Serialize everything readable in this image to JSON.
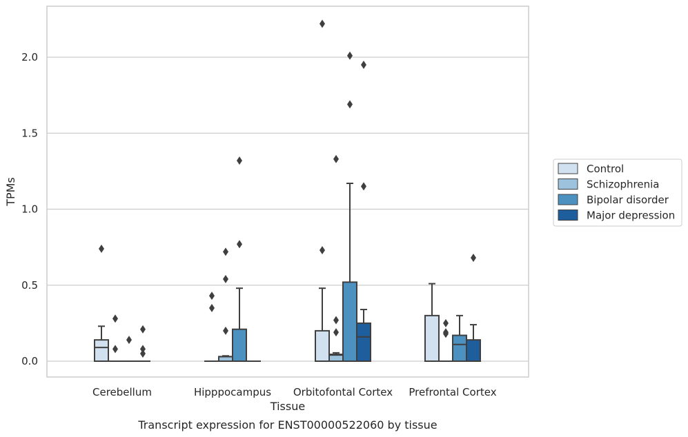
{
  "chart_data": {
    "type": "box",
    "title": "",
    "caption": "Transcript expression for ENST00000522060 by tissue",
    "xlabel": "Tissue",
    "ylabel": "TPMs",
    "ylim": [
      -0.11,
      2.34
    ],
    "yticks": [
      0.0,
      0.5,
      1.0,
      1.5,
      2.0
    ],
    "ytick_labels": [
      "0.0",
      "0.5",
      "1.0",
      "1.5",
      "2.0"
    ],
    "grid": "horizontal",
    "legend_position": "right",
    "categories": [
      "Cerebellum",
      "Hipppocampus",
      "Orbitofontal Cortex",
      "Prefrontal Cortex"
    ],
    "series": [
      {
        "name": "Control",
        "color": "#d1e1f0",
        "boxes": [
          {
            "q1": 0.0,
            "median": 0.09,
            "q3": 0.14,
            "whisker_low": 0.0,
            "whisker_high": 0.23,
            "outliers": [
              0.74
            ]
          },
          {
            "q1": 0.0,
            "median": 0.0,
            "q3": 0.0,
            "whisker_low": 0.0,
            "whisker_high": 0.0,
            "outliers": [
              0.43,
              0.35
            ]
          },
          {
            "q1": 0.0,
            "median": 0.0,
            "q3": 0.2,
            "whisker_low": 0.0,
            "whisker_high": 0.48,
            "outliers": [
              2.22,
              0.73
            ]
          },
          {
            "q1": 0.0,
            "median": 0.0,
            "q3": 0.3,
            "whisker_low": 0.0,
            "whisker_high": 0.51,
            "outliers": []
          }
        ]
      },
      {
        "name": "Schizophrenia",
        "color": "#9dc2dd",
        "boxes": [
          {
            "q1": 0.0,
            "median": 0.0,
            "q3": 0.0,
            "whisker_low": 0.0,
            "whisker_high": 0.0,
            "outliers": [
              0.28,
              0.08
            ]
          },
          {
            "q1": 0.0,
            "median": 0.03,
            "q3": 0.03,
            "whisker_low": 0.0,
            "whisker_high": 0.035,
            "outliers": [
              0.72,
              0.54,
              0.2
            ]
          },
          {
            "q1": 0.0,
            "median": 0.04,
            "q3": 0.045,
            "whisker_low": 0.0,
            "whisker_high": 0.055,
            "outliers": [
              1.33,
              0.27,
              0.19
            ]
          },
          {
            "q1": 0.0,
            "median": 0.0,
            "q3": 0.0,
            "whisker_low": 0.0,
            "whisker_high": 0.0,
            "outliers": [
              0.25,
              0.19,
              0.18
            ]
          }
        ]
      },
      {
        "name": "Bipolar disorder",
        "color": "#4c91c0",
        "boxes": [
          {
            "q1": 0.0,
            "median": 0.0,
            "q3": 0.0,
            "whisker_low": 0.0,
            "whisker_high": 0.0,
            "outliers": [
              0.14
            ]
          },
          {
            "q1": 0.0,
            "median": 0.0,
            "q3": 0.21,
            "whisker_low": 0.0,
            "whisker_high": 0.48,
            "outliers": [
              1.32,
              0.77
            ]
          },
          {
            "q1": 0.0,
            "median": 0.0,
            "q3": 0.52,
            "whisker_low": 0.0,
            "whisker_high": 1.17,
            "outliers": [
              2.01,
              1.69
            ]
          },
          {
            "q1": 0.0,
            "median": 0.11,
            "q3": 0.17,
            "whisker_low": 0.0,
            "whisker_high": 0.3,
            "outliers": []
          }
        ]
      },
      {
        "name": "Major depression",
        "color": "#1e5e9c",
        "boxes": [
          {
            "q1": 0.0,
            "median": 0.0,
            "q3": 0.0,
            "whisker_low": 0.0,
            "whisker_high": 0.0,
            "outliers": [
              0.21,
              0.08,
              0.05
            ]
          },
          {
            "q1": 0.0,
            "median": 0.0,
            "q3": 0.0,
            "whisker_low": 0.0,
            "whisker_high": 0.0,
            "outliers": []
          },
          {
            "q1": 0.0,
            "median": 0.16,
            "q3": 0.25,
            "whisker_low": 0.0,
            "whisker_high": 0.34,
            "outliers": [
              1.95,
              1.15
            ]
          },
          {
            "q1": 0.0,
            "median": 0.0,
            "q3": 0.14,
            "whisker_low": 0.0,
            "whisker_high": 0.24,
            "outliers": [
              0.68
            ]
          }
        ]
      }
    ]
  }
}
